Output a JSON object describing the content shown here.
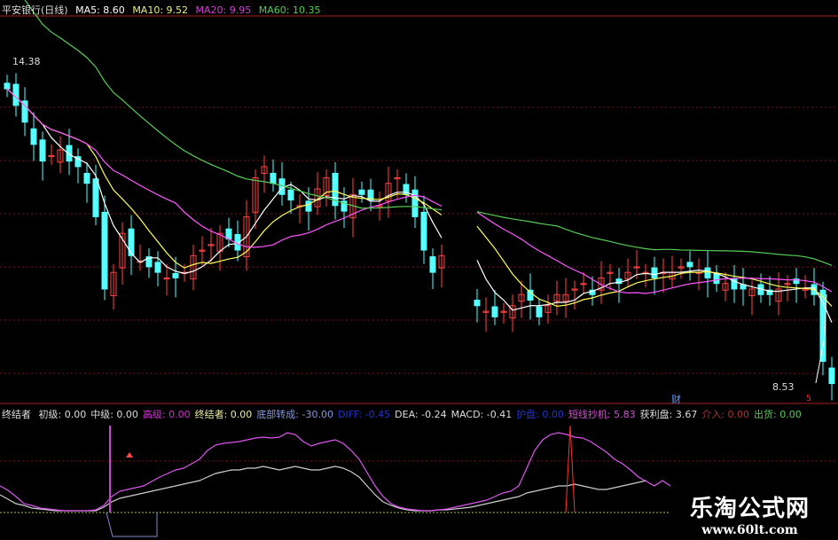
{
  "header": {
    "title": "平安银行(日线)",
    "ma5": "MA5: 8.60",
    "ma10": "MA10: 9.52",
    "ma20": "MA20: 9.95",
    "ma60": "MA60: 10.35"
  },
  "indicator": {
    "name": "终结者",
    "items": [
      {
        "t": "初级: 0.00",
        "c": "#dddddd"
      },
      {
        "t": "中级: 0.00",
        "c": "#dddddd"
      },
      {
        "t": "高级: 0.00",
        "c": "#cc33cc"
      },
      {
        "t": "终结者: 0.00",
        "c": "#eeeeaa"
      },
      {
        "t": "底部转成: -30.00",
        "c": "#8899dd"
      },
      {
        "t": "DIFF: -0.45",
        "c": "#2233cc"
      },
      {
        "t": "DEA: -0.24",
        "c": "#dddddd"
      },
      {
        "t": "MACD: -0.41",
        "c": "#dddddd"
      },
      {
        "t": "护盘: 0.00",
        "c": "#2233cc"
      },
      {
        "t": "短线抄机: 5.83",
        "c": "#cc55cc"
      },
      {
        "t": "获利盘: 3.67",
        "c": "#dddddd"
      },
      {
        "t": "介入: 0.00",
        "c": "#aa3333"
      },
      {
        "t": "出货: 0.00",
        "c": "#55cc55"
      }
    ]
  },
  "labels": {
    "high": "14.38",
    "low": "8.53",
    "cai": "财",
    "marker": "5"
  },
  "watermark": {
    "name": "乐淘公式网",
    "url": "www.60lt.com"
  },
  "colors": {
    "up": "#ff4444",
    "down": "#55ffff",
    "ma5": "#ffffff",
    "ma10": "#ffff55",
    "ma20": "#ff55ff",
    "ma60": "#55cc55",
    "grid": "#7a1010"
  },
  "chart_data": {
    "type": "candlestick",
    "price_range": [
      8.53,
      14.38
    ],
    "closes": [
      13.9,
      13.6,
      13.3,
      12.9,
      12.6,
      12.7,
      12.8,
      12.6,
      12.5,
      12.2,
      11.6,
      10.3,
      10.6,
      11.3,
      10.9,
      10.8,
      10.7,
      10.6,
      10.5,
      10.5,
      10.6,
      10.9,
      11.0,
      11.1,
      11.3,
      11.2,
      11.0,
      11.6,
      12.3,
      12.5,
      12.2,
      12.0,
      11.9,
      11.8,
      11.7,
      12.1,
      12.3,
      11.8,
      11.7,
      12.0,
      12.0,
      11.9,
      11.8,
      12.2,
      12.3,
      12.0,
      11.6,
      11.0,
      10.6,
      10.9,
      null,
      null,
      null,
      10.0,
      9.9,
      9.8,
      9.9,
      10.0,
      10.2,
      10.1,
      9.8,
      10.0,
      10.2,
      10.2,
      10.3,
      10.4,
      10.2,
      10.5,
      10.6,
      10.4,
      10.6,
      10.7,
      10.6,
      10.5,
      10.6,
      10.6,
      10.7,
      10.7,
      10.6,
      10.5,
      10.4,
      10.4,
      10.3,
      10.3,
      10.3,
      10.2,
      10.2,
      10.3,
      10.4,
      10.4,
      10.3,
      10.2,
      9.0,
      8.6
    ],
    "indicator_purple": [
      30,
      25,
      18,
      10,
      8,
      5,
      4,
      3,
      2,
      2,
      2,
      2,
      3,
      8,
      18,
      24,
      26,
      28,
      30,
      35,
      40,
      44,
      48,
      50,
      55,
      60,
      70,
      76,
      78,
      79,
      80,
      82,
      84,
      85,
      84,
      85,
      90,
      88,
      80,
      75,
      78,
      80,
      82,
      78,
      70,
      60,
      45,
      30,
      18,
      10,
      6,
      4,
      3,
      2,
      2,
      3,
      4,
      6,
      8,
      10,
      12,
      14,
      18,
      22,
      24,
      30,
      50,
      70,
      82,
      88,
      90,
      88,
      85,
      84,
      80,
      74,
      68,
      60,
      55,
      48,
      40,
      35,
      30,
      36,
      30
    ],
    "indicator_white": [
      20,
      15,
      10,
      8,
      5,
      4,
      3,
      2,
      2,
      2,
      2,
      2,
      2,
      6,
      12,
      16,
      18,
      20,
      22,
      24,
      26,
      28,
      30,
      32,
      34,
      36,
      40,
      44,
      46,
      48,
      48,
      50,
      50,
      52,
      50,
      48,
      50,
      52,
      50,
      48,
      48,
      50,
      52,
      50,
      46,
      40,
      30,
      20,
      12,
      8,
      5,
      3,
      2,
      2,
      2,
      3,
      3,
      4,
      5,
      6,
      8,
      10,
      12,
      14,
      16,
      18,
      22,
      24,
      26,
      28,
      30,
      30,
      32,
      30,
      28,
      26,
      26,
      28,
      30,
      32,
      34,
      36
    ],
    "indicator_range": [
      0,
      100
    ]
  }
}
